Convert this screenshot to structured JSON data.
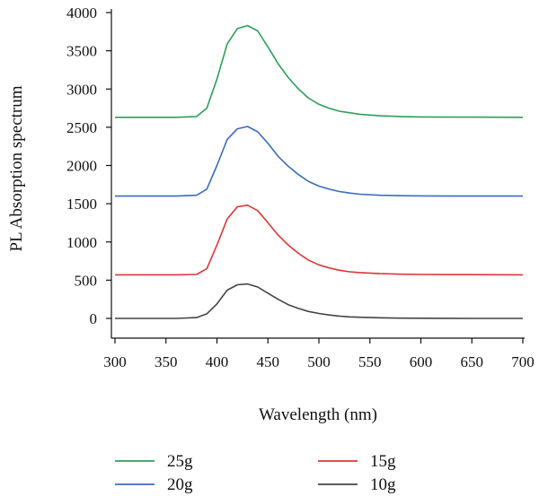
{
  "chart_data": {
    "type": "line",
    "title": "",
    "xlabel": "Wavelength (nm)",
    "ylabel": "PL Absorption spectrum",
    "xlim": [
      300,
      700
    ],
    "ylim": [
      0,
      4000
    ],
    "xticks": [
      300,
      350,
      400,
      450,
      500,
      550,
      600,
      650,
      700
    ],
    "yticks": [
      0,
      500,
      1000,
      1500,
      2000,
      2500,
      3000,
      3500,
      4000
    ],
    "grid": false,
    "legend_position": "bottom",
    "x": [
      300,
      320,
      340,
      360,
      380,
      390,
      400,
      410,
      420,
      430,
      440,
      450,
      460,
      470,
      480,
      490,
      500,
      510,
      520,
      530,
      540,
      560,
      580,
      600,
      650,
      700
    ],
    "series": [
      {
        "name": "25g",
        "color": "#2ca05a",
        "values": [
          2630,
          2630,
          2630,
          2630,
          2640,
          2750,
          3130,
          3590,
          3790,
          3830,
          3760,
          3550,
          3330,
          3150,
          3000,
          2880,
          2800,
          2750,
          2710,
          2690,
          2670,
          2650,
          2640,
          2635,
          2632,
          2630
        ]
      },
      {
        "name": "20g",
        "color": "#3a6cc4",
        "values": [
          1600,
          1600,
          1600,
          1600,
          1610,
          1690,
          2000,
          2340,
          2480,
          2510,
          2440,
          2290,
          2120,
          1990,
          1880,
          1790,
          1730,
          1690,
          1660,
          1640,
          1625,
          1610,
          1605,
          1602,
          1600,
          1600
        ]
      },
      {
        "name": "15g",
        "color": "#e03535",
        "values": [
          570,
          570,
          570,
          570,
          575,
          650,
          960,
          1300,
          1460,
          1480,
          1410,
          1250,
          1090,
          960,
          850,
          760,
          700,
          660,
          630,
          610,
          600,
          585,
          578,
          575,
          572,
          570
        ]
      },
      {
        "name": "10g",
        "color": "#444444",
        "values": [
          0,
          0,
          0,
          0,
          10,
          60,
          190,
          370,
          440,
          450,
          410,
          330,
          250,
          180,
          130,
          90,
          65,
          45,
          30,
          20,
          15,
          8,
          4,
          2,
          0,
          0
        ]
      }
    ],
    "legend_layout": [
      [
        "25g",
        "15g"
      ],
      [
        "20g",
        "10g"
      ]
    ]
  }
}
